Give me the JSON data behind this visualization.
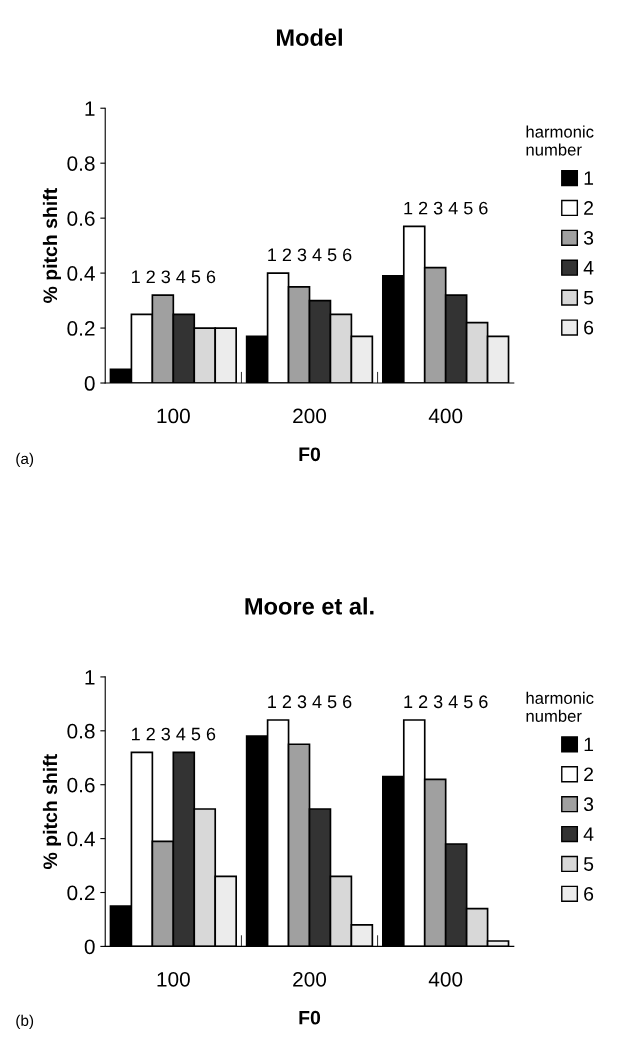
{
  "chart_data": [
    {
      "type": "bar",
      "title": "Model",
      "xlabel": "F0",
      "ylabel": "% pitch shift",
      "legend_title": "harmonic\nnumber",
      "categories": [
        "100",
        "200",
        "400"
      ],
      "ylim": [
        0,
        1
      ],
      "yticks": [
        0,
        0.2,
        0.4,
        0.6,
        0.8,
        1
      ],
      "grid": false,
      "legend": "right",
      "series": [
        {
          "name": "1",
          "color": "#000000",
          "values": [
            0.05,
            0.17,
            0.39
          ]
        },
        {
          "name": "2",
          "color": "#ffffff",
          "values": [
            0.25,
            0.4,
            0.57
          ]
        },
        {
          "name": "3",
          "color": "#a0a0a0",
          "values": [
            0.32,
            0.35,
            0.42
          ]
        },
        {
          "name": "4",
          "color": "#333333",
          "values": [
            0.25,
            0.3,
            0.32
          ]
        },
        {
          "name": "5",
          "color": "#d8d8d8",
          "values": [
            0.2,
            0.25,
            0.22
          ]
        },
        {
          "name": "6",
          "color": "#ececec",
          "values": [
            0.2,
            0.17,
            0.17
          ]
        }
      ],
      "annotations": [
        "(a)",
        "1 2 3 4 5 6",
        "1 2 3 4 5 6",
        "1 2 3 4 5 6"
      ]
    },
    {
      "type": "bar",
      "title": "Moore et al.",
      "xlabel": "F0",
      "ylabel": "% pitch shift",
      "legend_title": "harmonic\nnumber",
      "categories": [
        "100",
        "200",
        "400"
      ],
      "ylim": [
        0,
        1
      ],
      "yticks": [
        0,
        0.2,
        0.4,
        0.6,
        0.8,
        1
      ],
      "grid": false,
      "legend": "right",
      "series": [
        {
          "name": "1",
          "color": "#000000",
          "values": [
            0.15,
            0.78,
            0.63
          ]
        },
        {
          "name": "2",
          "color": "#ffffff",
          "values": [
            0.72,
            0.84,
            0.84
          ]
        },
        {
          "name": "3",
          "color": "#a0a0a0",
          "values": [
            0.39,
            0.75,
            0.62
          ]
        },
        {
          "name": "4",
          "color": "#333333",
          "values": [
            0.72,
            0.51,
            0.38
          ]
        },
        {
          "name": "5",
          "color": "#d8d8d8",
          "values": [
            0.51,
            0.26,
            0.14
          ]
        },
        {
          "name": "6",
          "color": "#ececec",
          "values": [
            0.26,
            0.08,
            0.02
          ]
        }
      ],
      "annotations": [
        "(b)",
        "1 2 3 4 5 6",
        "1 2 3 4 5 6",
        "1 2 3 4 5 6"
      ]
    }
  ]
}
